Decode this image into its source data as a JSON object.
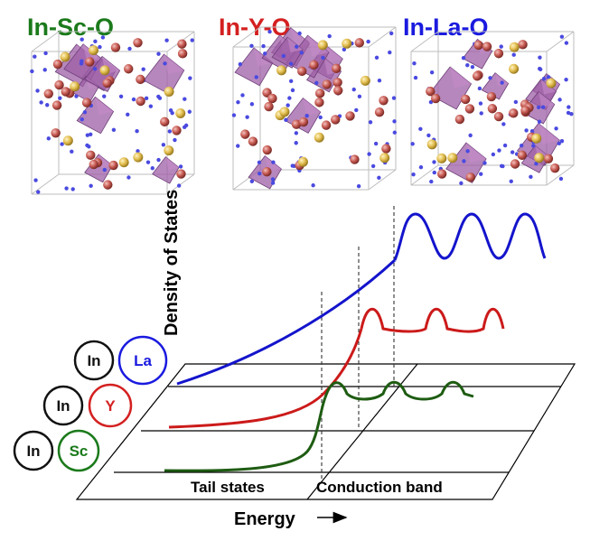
{
  "materials": [
    {
      "name": "In-Sc-O",
      "color": "#1b7a1b"
    },
    {
      "name": "In-Y-O",
      "color": "#d42020"
    },
    {
      "name": "In-La-O",
      "color": "#1a1adf"
    }
  ],
  "axes": {
    "y_label": "Density of States",
    "x_label": "Energy",
    "x_arrow": "→"
  },
  "regions": {
    "tail": "Tail states",
    "conduction": "Conduction band"
  },
  "badges": {
    "la": {
      "host": "In",
      "dopant": "La",
      "color": "#1a1adf"
    },
    "y": {
      "host": "In",
      "dopant": "Y",
      "color": "#d42020"
    },
    "sc": {
      "host": "In",
      "dopant": "Sc",
      "color": "#1b7a1b"
    }
  },
  "colors": {
    "sc_curve": "#1e5c12",
    "y_curve": "#cc1a1a",
    "la_curve": "#1414cc",
    "octahedron": "#9d5fa6",
    "oxygen_atom": "#c0504d",
    "dopant_atom": "#e6c050",
    "bond_node": "#4a4ae0"
  }
}
